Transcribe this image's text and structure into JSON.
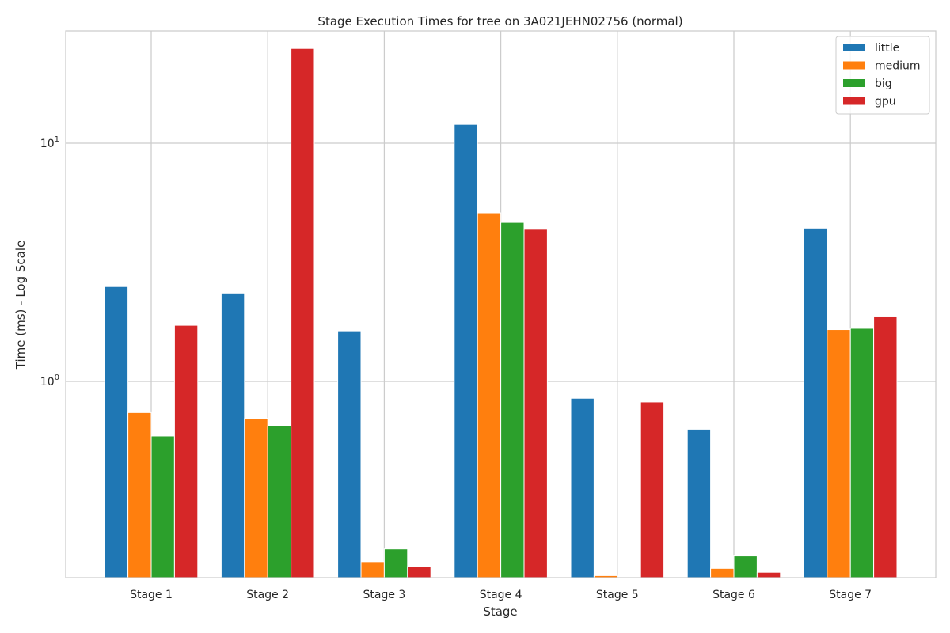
{
  "chart_data": {
    "type": "bar",
    "title": "Stage Execution Times for tree on 3A021JEHN02756 (normal)",
    "xlabel": "Stage",
    "ylabel": "Time (ms) - Log Scale",
    "yscale": "log",
    "ylim": [
      0.15,
      30
    ],
    "y_tick_labels": [
      {
        "value": 1,
        "base": "10",
        "exp": "0"
      },
      {
        "value": 10,
        "base": "10",
        "exp": "1"
      }
    ],
    "grid": true,
    "legend_position": "top-right",
    "categories": [
      "Stage 1",
      "Stage 2",
      "Stage 3",
      "Stage 4",
      "Stage 5",
      "Stage 6",
      "Stage 7"
    ],
    "series": [
      {
        "name": "little",
        "color": "#1f77b4",
        "values": [
          2.5,
          2.35,
          1.63,
          12.0,
          0.85,
          0.63,
          4.4
        ]
      },
      {
        "name": "medium",
        "color": "#ff7f0e",
        "values": [
          0.74,
          0.7,
          0.175,
          5.1,
          0.153,
          0.164,
          1.65
        ]
      },
      {
        "name": "big",
        "color": "#2ca02c",
        "values": [
          0.59,
          0.65,
          0.198,
          4.65,
          0.143,
          0.185,
          1.67
        ]
      },
      {
        "name": "gpu",
        "color": "#d62728",
        "values": [
          1.72,
          25.0,
          0.167,
          4.35,
          0.82,
          0.158,
          1.88
        ]
      }
    ]
  }
}
